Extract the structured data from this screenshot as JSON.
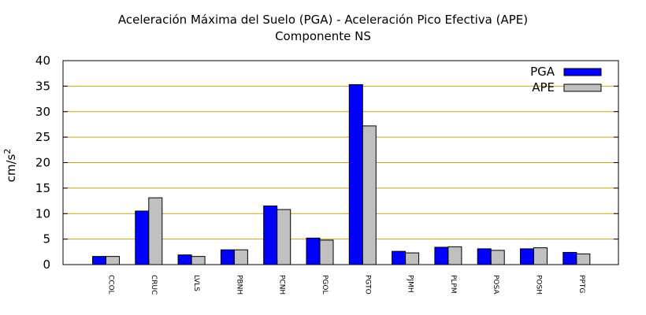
{
  "chart_data": {
    "type": "bar",
    "title": "Aceleración Máxima del Suelo (PGA) -  Aceleración Pico Efectiva (APE)",
    "subtitle": "Componente NS",
    "xlabel": "",
    "ylabel": "cm/s",
    "ylabel_sup": "2",
    "ylim": [
      0,
      40
    ],
    "yticks": [
      0,
      5,
      10,
      15,
      20,
      25,
      30,
      35,
      40
    ],
    "grid": true,
    "legend_position": "top-right",
    "categories": [
      "CCOL",
      "CRUC",
      "LVLS",
      "PBNH",
      "PCNH",
      "PGOL",
      "PGTO",
      "PJMH",
      "PLPM",
      "POSA",
      "POSH",
      "PPTG"
    ],
    "series": [
      {
        "name": "PGA",
        "color": "#0000ff",
        "values": [
          1.6,
          10.5,
          1.9,
          2.9,
          11.5,
          5.2,
          35.3,
          2.6,
          3.4,
          3.1,
          3.1,
          2.4
        ]
      },
      {
        "name": "APE",
        "color": "#c0c0c0",
        "values": [
          1.6,
          13.1,
          1.6,
          2.9,
          10.8,
          4.8,
          27.2,
          2.3,
          3.5,
          2.8,
          3.3,
          2.1
        ]
      }
    ],
    "colors": {
      "grid": "#d4a017",
      "frame": "#000000"
    }
  }
}
